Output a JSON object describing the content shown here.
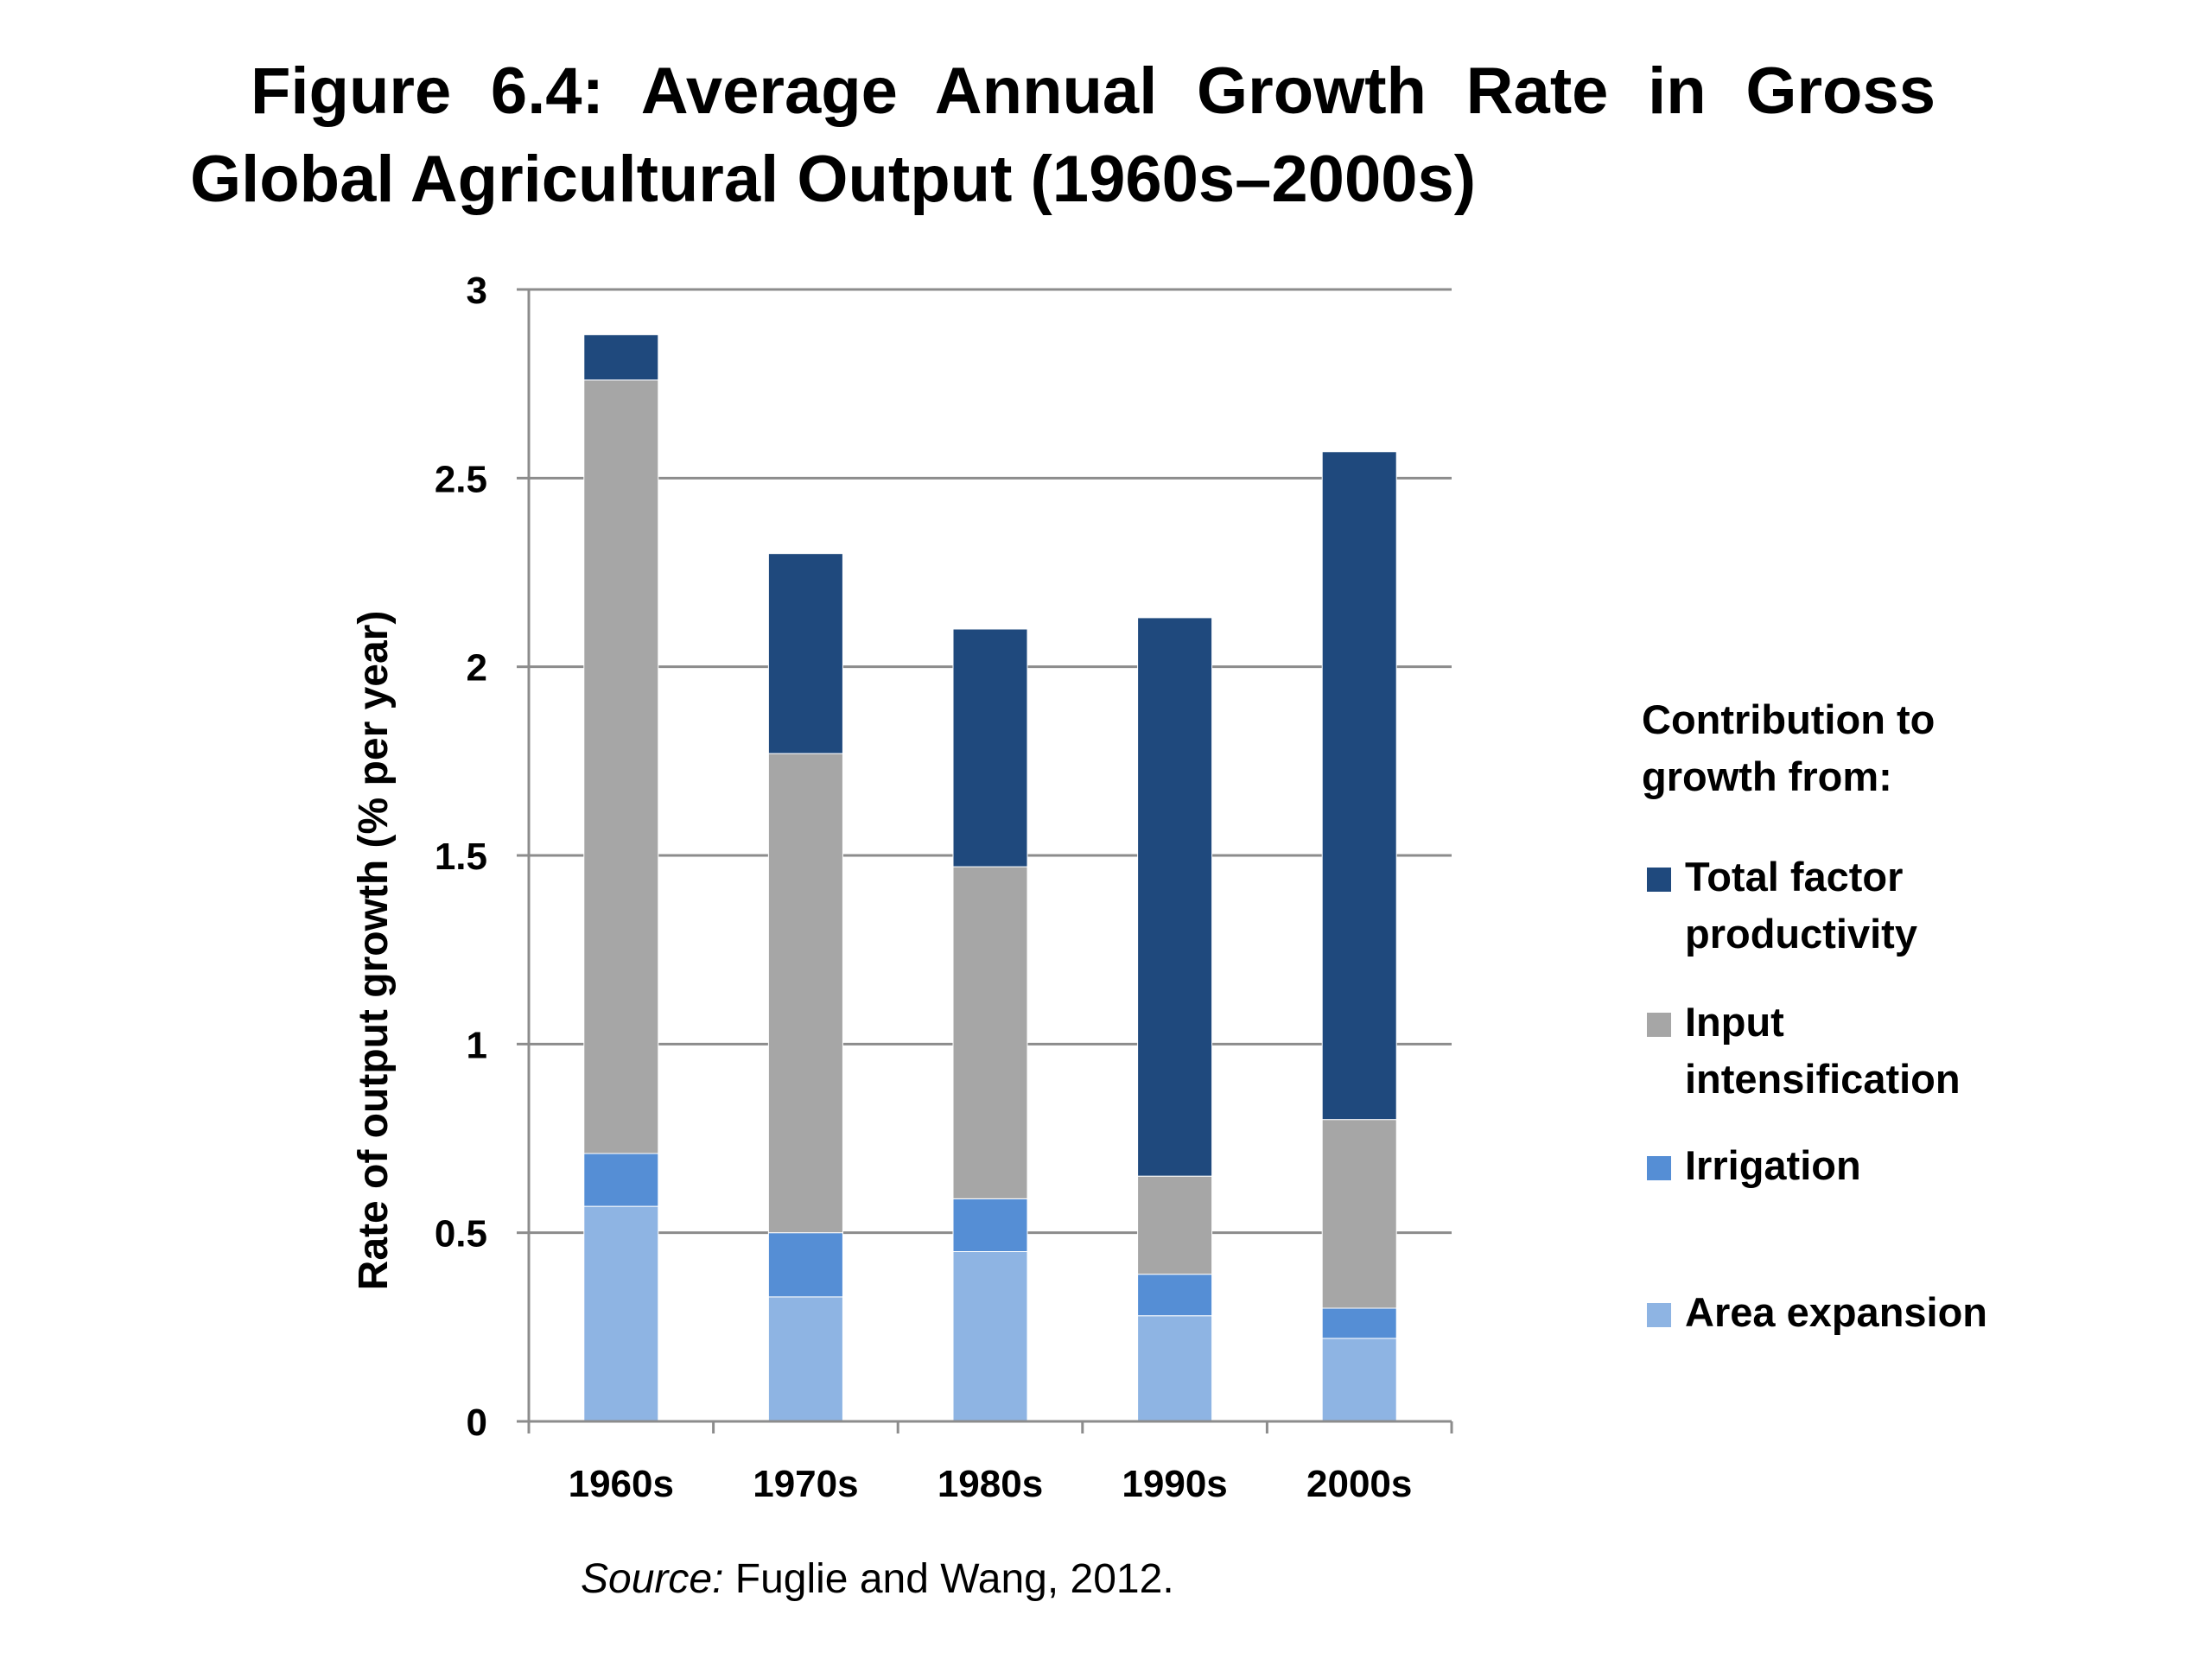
{
  "title_line1": "Figure 6.4: Average Annual Growth Rate in Gross",
  "title_line2": "Global Agricultural Output (1960s–2000s)",
  "legend": {
    "heading_line1": "Contribution to",
    "heading_line2": "growth from:",
    "items": [
      {
        "line1": "Total factor",
        "line2": "productivity",
        "color": "#1f497d"
      },
      {
        "line1": "Input",
        "line2": "intensification",
        "color": "#a6a6a6"
      },
      {
        "line1": "Irrigation",
        "line2": "",
        "color": "#558ed5"
      },
      {
        "line1": "Area expansion",
        "line2": "",
        "color": "#8eb4e3"
      }
    ]
  },
  "source": {
    "label": "Source:",
    "text": " Fuglie and Wang, 2012."
  },
  "chart_data": {
    "type": "bar",
    "stacked": true,
    "title": "",
    "xlabel": "",
    "ylabel": "Rate of output growth (% per year)",
    "ylim": [
      0,
      3
    ],
    "yticks": [
      0,
      0.5,
      1,
      1.5,
      2,
      2.5,
      3
    ],
    "ytick_labels": [
      "0",
      "0.5",
      "1",
      "1.5",
      "2",
      "2.5",
      "3"
    ],
    "grid": true,
    "legend_position": "right",
    "categories": [
      "1960s",
      "1970s",
      "1980s",
      "1990s",
      "2000s"
    ],
    "series": [
      {
        "name": "Area expansion",
        "color": "#8eb4e3",
        "values": [
          0.57,
          0.33,
          0.45,
          0.28,
          0.22
        ]
      },
      {
        "name": "Irrigation",
        "color": "#558ed5",
        "values": [
          0.14,
          0.17,
          0.14,
          0.11,
          0.08
        ]
      },
      {
        "name": "Input intensification",
        "color": "#a6a6a6",
        "values": [
          2.05,
          1.27,
          0.88,
          0.26,
          0.5
        ]
      },
      {
        "name": "Total factor productivity",
        "color": "#1f497d",
        "values": [
          0.12,
          0.53,
          0.63,
          1.48,
          1.77
        ]
      }
    ]
  }
}
